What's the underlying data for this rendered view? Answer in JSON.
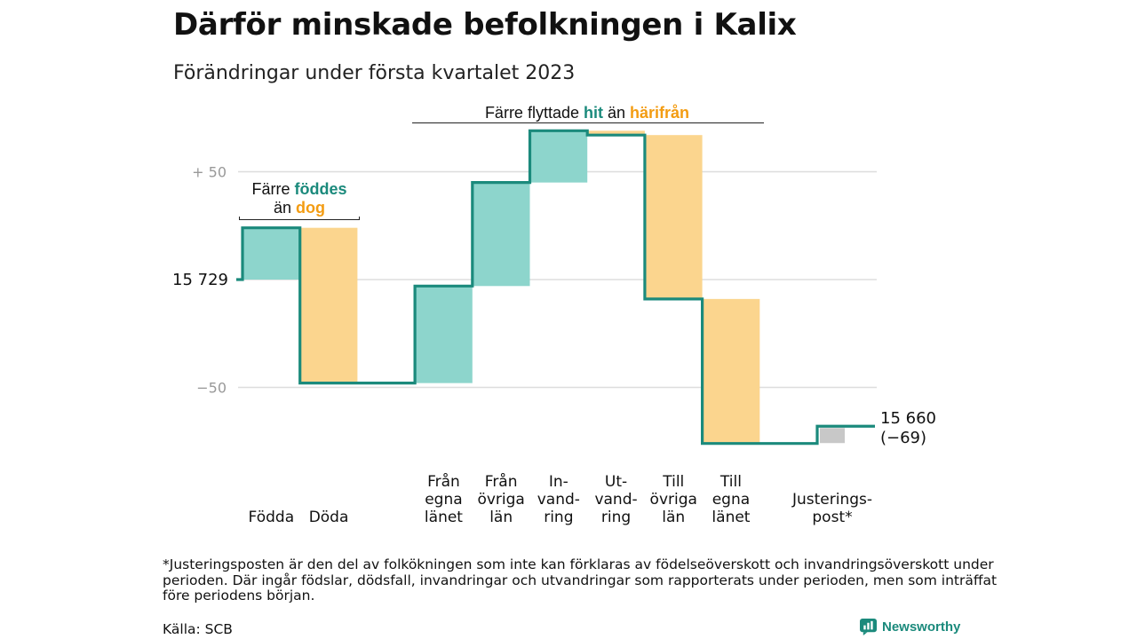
{
  "title": "Därför minskade befolkningen i Kalix",
  "subtitle": "Förändringar under första kvartalet 2023",
  "chart_data": {
    "type": "waterfall",
    "start_value": 15729,
    "start_label": "15 729",
    "end_value": 15660,
    "end_label": "15 660",
    "end_change_label": "(−69)",
    "y_ticks": [
      {
        "value": 50,
        "label": "+ 50"
      },
      {
        "value": 0,
        "label": ""
      },
      {
        "value": -50,
        "label": "−50"
      }
    ],
    "ylim": [
      -80,
      72
    ],
    "steps": [
      {
        "label_lines": [
          "Födda"
        ],
        "change": 24,
        "kind": "in"
      },
      {
        "label_lines": [
          "Döda"
        ],
        "change": -72,
        "kind": "out"
      },
      {
        "label_lines": [
          ""
        ],
        "change": 0,
        "kind": "gap"
      },
      {
        "label_lines": [
          "Från",
          "egna",
          "länet"
        ],
        "change": 45,
        "kind": "in"
      },
      {
        "label_lines": [
          "Från",
          "övriga",
          "län"
        ],
        "change": 48,
        "kind": "in"
      },
      {
        "label_lines": [
          "In-",
          "vand-",
          "ring"
        ],
        "change": 24,
        "kind": "in"
      },
      {
        "label_lines": [
          "Ut-",
          "vand-",
          "ring"
        ],
        "change": -2,
        "kind": "out"
      },
      {
        "label_lines": [
          "Till",
          "övriga",
          "län"
        ],
        "change": -76,
        "kind": "out"
      },
      {
        "label_lines": [
          "Till",
          "egna",
          "länet"
        ],
        "change": -67,
        "kind": "out"
      },
      {
        "label_lines": [
          ""
        ],
        "change": 0,
        "kind": "gap"
      },
      {
        "label_lines": [
          "Justerings-",
          "post*"
        ],
        "change": 8,
        "kind": "adjust"
      }
    ],
    "annotations": {
      "births": {
        "prefix": "Färre ",
        "highlight_in": "föddes",
        "line2_prefix": "än ",
        "highlight_out": "dog"
      },
      "migration": {
        "prefix": "Färre flyttade ",
        "highlight_in": "hit",
        "middle": " än ",
        "highlight_out": "härifrån"
      }
    },
    "colors": {
      "in": "#8dd5cc",
      "out": "#fbd58e",
      "adjust": "#c8c8c8",
      "line": "#1b8a7c",
      "in_text": "#1b8a7c",
      "out_text": "#f39c12",
      "grid": "#dddddd",
      "tick_text": "#999999"
    }
  },
  "footnote": "*Justeringsposten är den del av folkökningen som inte kan förklaras av födelseöverskott och invandringsöverskott under perioden. Där ingår födslar, dödsfall, invandringar och utvandringar som rapporterats under perioden, men som inträffat före periodens början.",
  "source": "Källa: SCB",
  "brand": {
    "name": "Newsworthy",
    "icon": "newsworthy-logo-icon",
    "color": "#1b8a7c"
  }
}
